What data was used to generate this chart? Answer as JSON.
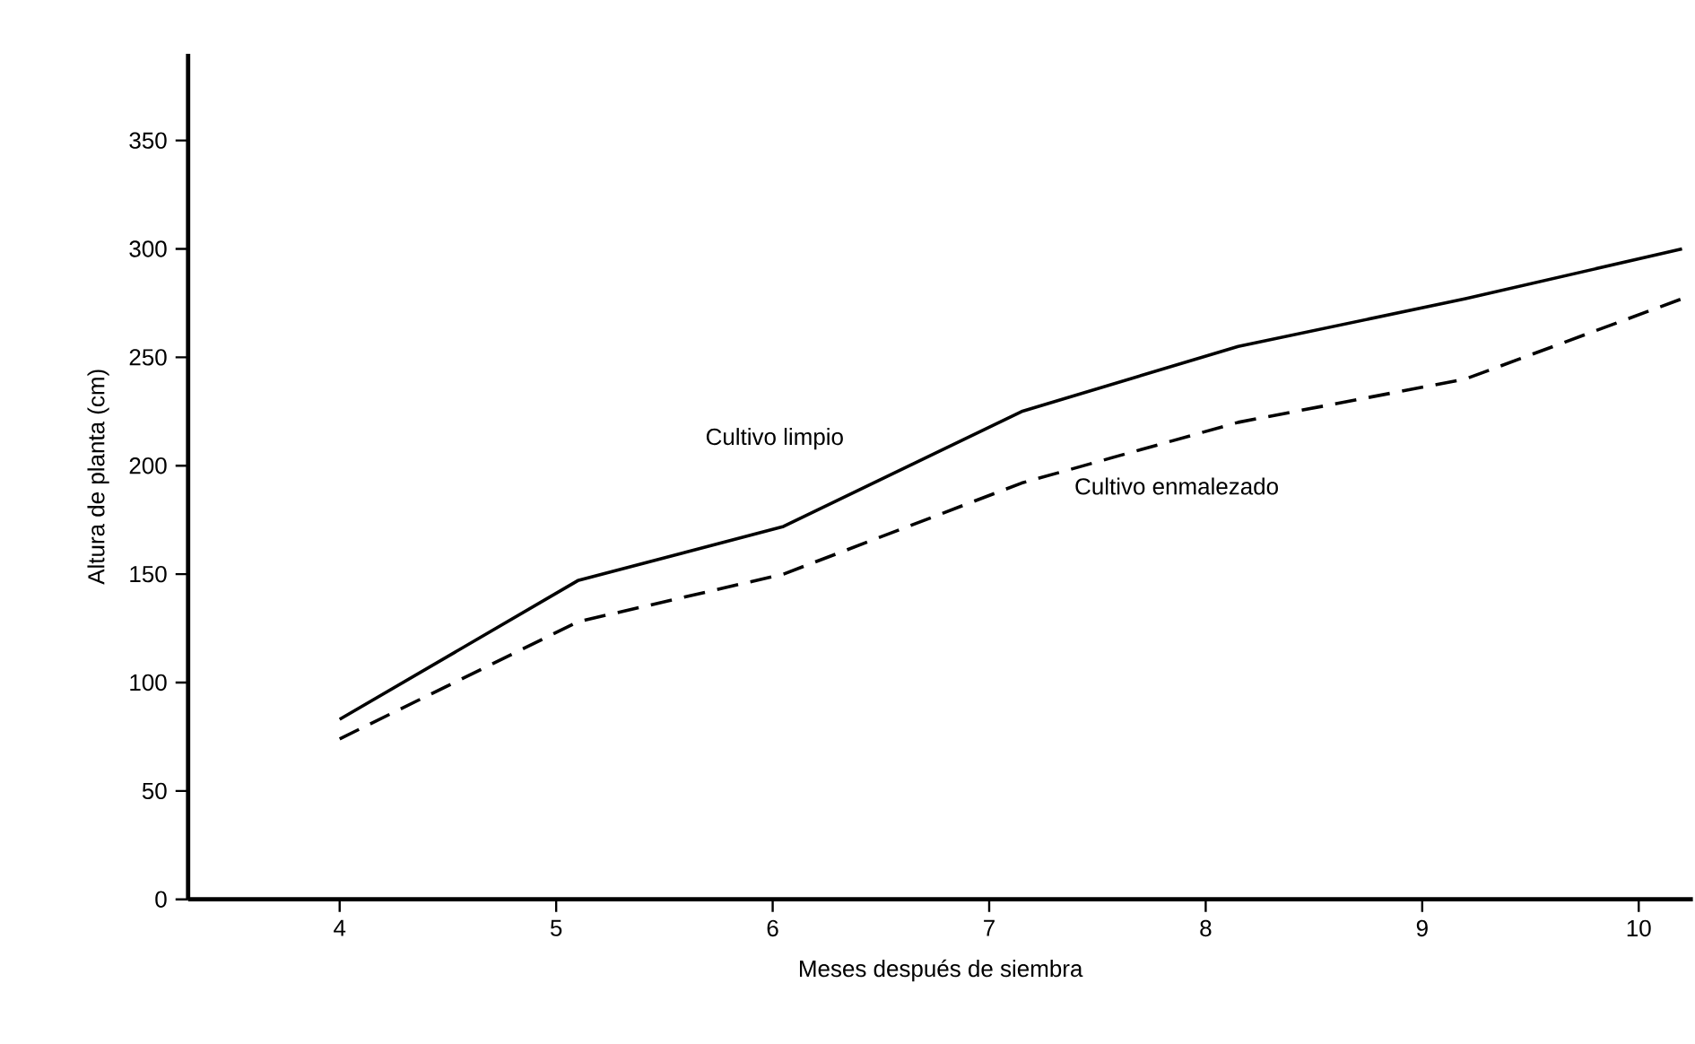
{
  "chart_data": {
    "type": "line",
    "xlabel": "Meses después de siembra",
    "ylabel": "Altura de planta  (cm)",
    "x": [
      4,
      5.1,
      6.05,
      7.15,
      8.15,
      9.2,
      10.2
    ],
    "series": [
      {
        "name": "Cultivo limpio",
        "color": "#000000",
        "line_style": "solid",
        "values": [
          83,
          147,
          172,
          225,
          255,
          277,
          300
        ]
      },
      {
        "name": "Cultivo enmalezado",
        "color": "#000000",
        "line_style": "dashed",
        "values": [
          74,
          128,
          150,
          192,
          220,
          240,
          277
        ]
      }
    ],
    "xlim": [
      3.3,
      10.25
    ],
    "ylim": [
      0,
      390
    ],
    "xticks": [
      4,
      5,
      6,
      7,
      8,
      9,
      10
    ],
    "yticks": [
      0,
      50,
      100,
      150,
      200,
      250,
      300,
      350
    ],
    "marker": "none"
  }
}
